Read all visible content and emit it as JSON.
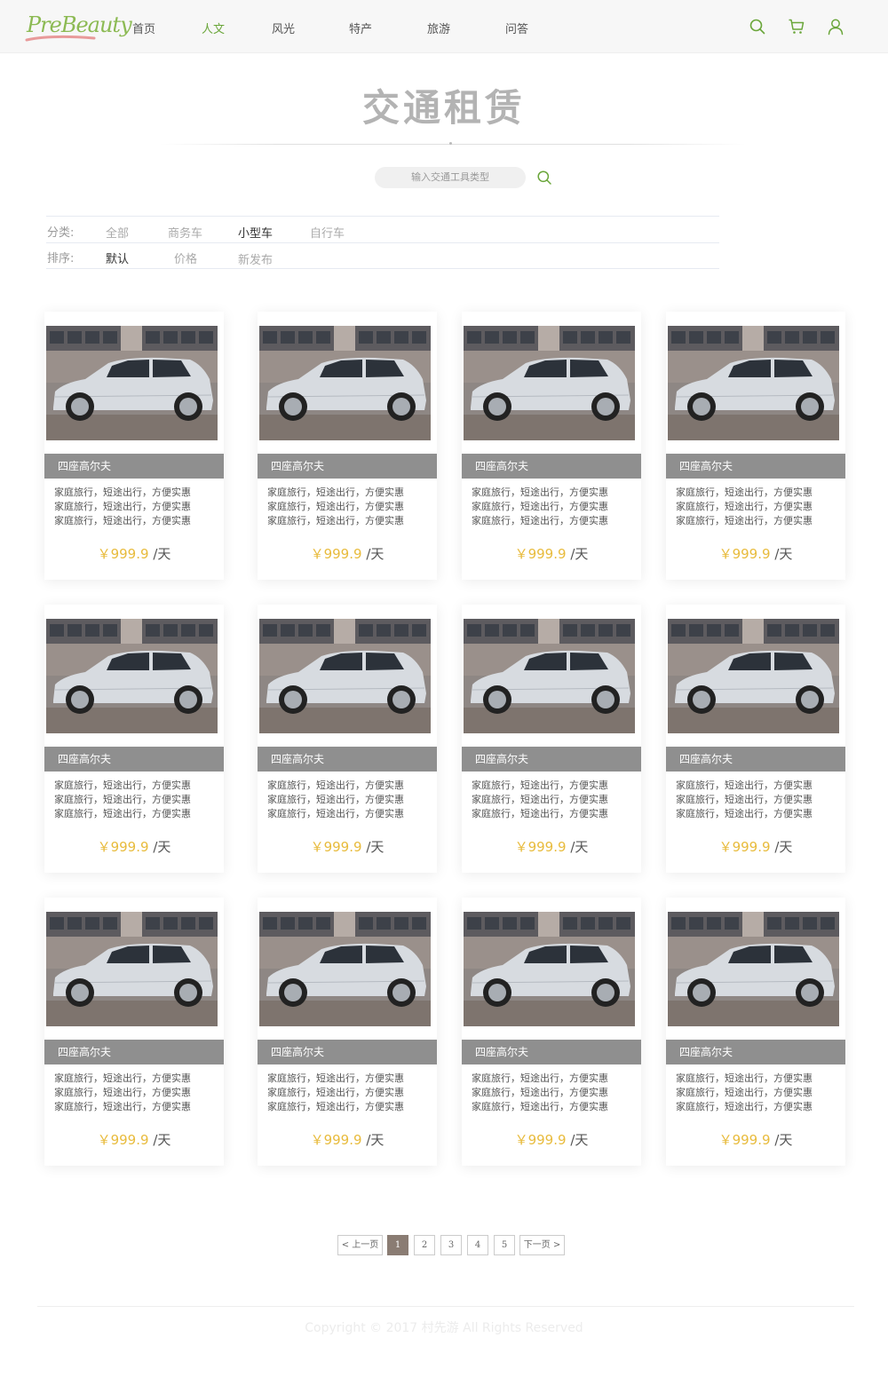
{
  "header": {
    "logo_text": "PreBeauty",
    "nav": [
      {
        "label": "首页",
        "active": false
      },
      {
        "label": "人文",
        "active": true
      },
      {
        "label": "风光",
        "active": false
      },
      {
        "label": "特产",
        "active": false
      },
      {
        "label": "旅游",
        "active": false
      },
      {
        "label": "问答",
        "active": false
      }
    ],
    "icons": [
      "search-icon",
      "cart-icon",
      "user-icon"
    ],
    "accent_color": "#6aa63a"
  },
  "page_title": "交通租赁",
  "search": {
    "placeholder": "输入交通工具类型"
  },
  "filters": {
    "category": {
      "label": "分类:",
      "options": [
        "全部",
        "商务车",
        "小型车",
        "自行车"
      ],
      "selected": "小型车"
    },
    "sort": {
      "label": "排序:",
      "options": [
        "默认",
        "价格",
        "新发布"
      ],
      "selected": "默认"
    }
  },
  "cards": [
    {
      "name": "四座高尔夫",
      "desc": [
        "家庭旅行，短途出行，方便实惠",
        "家庭旅行，短途出行，方便实惠",
        "家庭旅行，短途出行，方便实惠"
      ],
      "price": "￥999.9",
      "unit": "/天"
    },
    {
      "name": "四座高尔夫",
      "desc": [
        "家庭旅行，短途出行，方便实惠",
        "家庭旅行，短途出行，方便实惠",
        "家庭旅行，短途出行，方便实惠"
      ],
      "price": "￥999.9",
      "unit": "/天"
    },
    {
      "name": "四座高尔夫",
      "desc": [
        "家庭旅行，短途出行，方便实惠",
        "家庭旅行，短途出行，方便实惠",
        "家庭旅行，短途出行，方便实惠"
      ],
      "price": "￥999.9",
      "unit": "/天"
    },
    {
      "name": "四座高尔夫",
      "desc": [
        "家庭旅行，短途出行，方便实惠",
        "家庭旅行，短途出行，方便实惠",
        "家庭旅行，短途出行，方便实惠"
      ],
      "price": "￥999.9",
      "unit": "/天"
    },
    {
      "name": "四座高尔夫",
      "desc": [
        "家庭旅行，短途出行，方便实惠",
        "家庭旅行，短途出行，方便实惠",
        "家庭旅行，短途出行，方便实惠"
      ],
      "price": "￥999.9",
      "unit": "/天"
    },
    {
      "name": "四座高尔夫",
      "desc": [
        "家庭旅行，短途出行，方便实惠",
        "家庭旅行，短途出行，方便实惠",
        "家庭旅行，短途出行，方便实惠"
      ],
      "price": "￥999.9",
      "unit": "/天"
    },
    {
      "name": "四座高尔夫",
      "desc": [
        "家庭旅行，短途出行，方便实惠",
        "家庭旅行，短途出行，方便实惠",
        "家庭旅行，短途出行，方便实惠"
      ],
      "price": "￥999.9",
      "unit": "/天"
    },
    {
      "name": "四座高尔夫",
      "desc": [
        "家庭旅行，短途出行，方便实惠",
        "家庭旅行，短途出行，方便实惠",
        "家庭旅行，短途出行，方便实惠"
      ],
      "price": "￥999.9",
      "unit": "/天"
    },
    {
      "name": "四座高尔夫",
      "desc": [
        "家庭旅行，短途出行，方便实惠",
        "家庭旅行，短途出行，方便实惠",
        "家庭旅行，短途出行，方便实惠"
      ],
      "price": "￥999.9",
      "unit": "/天"
    },
    {
      "name": "四座高尔夫",
      "desc": [
        "家庭旅行，短途出行，方便实惠",
        "家庭旅行，短途出行，方便实惠",
        "家庭旅行，短途出行，方便实惠"
      ],
      "price": "￥999.9",
      "unit": "/天"
    },
    {
      "name": "四座高尔夫",
      "desc": [
        "家庭旅行，短途出行，方便实惠",
        "家庭旅行，短途出行，方便实惠",
        "家庭旅行，短途出行，方便实惠"
      ],
      "price": "￥999.9",
      "unit": "/天"
    },
    {
      "name": "四座高尔夫",
      "desc": [
        "家庭旅行，短途出行，方便实惠",
        "家庭旅行，短途出行，方便实惠",
        "家庭旅行，短途出行，方便实惠"
      ],
      "price": "￥999.9",
      "unit": "/天"
    }
  ],
  "pagination": {
    "prev": "< 上一页",
    "pages": [
      "1",
      "2",
      "3",
      "4",
      "5"
    ],
    "current": "1",
    "next": "下一页 >"
  },
  "footer": {
    "copyright": "Copyright © 2017 村先游 All Rights Reserved"
  }
}
